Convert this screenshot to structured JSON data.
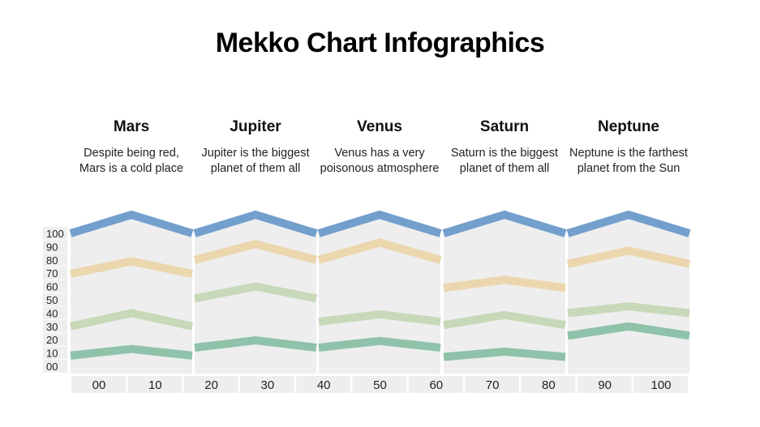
{
  "title": "Mekko Chart Infographics",
  "columns": [
    {
      "name": "Mars",
      "text": "Despite being red, Mars is a cold place"
    },
    {
      "name": "Jupiter",
      "text": "Jupiter is the biggest planet of them all"
    },
    {
      "name": "Venus",
      "text": "Venus has a very poisonous atmosphere"
    },
    {
      "name": "Saturn",
      "text": "Saturn is the biggest planet of them all"
    },
    {
      "name": "Neptune",
      "text": "Neptune is the farthest planet from the Sun"
    }
  ],
  "chart_data": {
    "type": "line",
    "y_ticks": [
      "100",
      "90",
      "80",
      "70",
      "60",
      "50",
      "40",
      "30",
      "20",
      "10",
      "00"
    ],
    "x_ticks": [
      "00",
      "10",
      "20",
      "30",
      "40",
      "50",
      "60",
      "70",
      "80",
      "90",
      "100"
    ],
    "ylim": [
      0,
      100
    ],
    "colors": {
      "blue": "#739fcd",
      "orange": "#ebd6ae",
      "light_green": "#c8d9ba",
      "dark_green": "#8fc2aa",
      "panel": "#eeeeee"
    },
    "panels": [
      {
        "name": "Mars",
        "bands": {
          "blue": [
            100,
            114
          ],
          "orange": [
            69.5,
            79
          ],
          "light_green": [
            30,
            40
          ],
          "dark_green": [
            8,
            13
          ]
        }
      },
      {
        "name": "Jupiter",
        "bands": {
          "blue": [
            100,
            114
          ],
          "orange": [
            80,
            92
          ],
          "light_green": [
            51,
            60
          ],
          "dark_green": [
            14,
            19.5
          ]
        }
      },
      {
        "name": "Venus",
        "bands": {
          "blue": [
            100,
            114
          ],
          "orange": [
            80,
            93
          ],
          "light_green": [
            33.5,
            39
          ],
          "dark_green": [
            14,
            19
          ]
        }
      },
      {
        "name": "Saturn",
        "bands": {
          "blue": [
            100,
            114
          ],
          "orange": [
            59,
            65
          ],
          "light_green": [
            31,
            38.5
          ],
          "dark_green": [
            7,
            11
          ]
        }
      },
      {
        "name": "Neptune",
        "bands": {
          "blue": [
            100,
            114
          ],
          "orange": [
            77,
            87
          ],
          "light_green": [
            40,
            45
          ],
          "dark_green": [
            23,
            30
          ]
        }
      }
    ]
  }
}
